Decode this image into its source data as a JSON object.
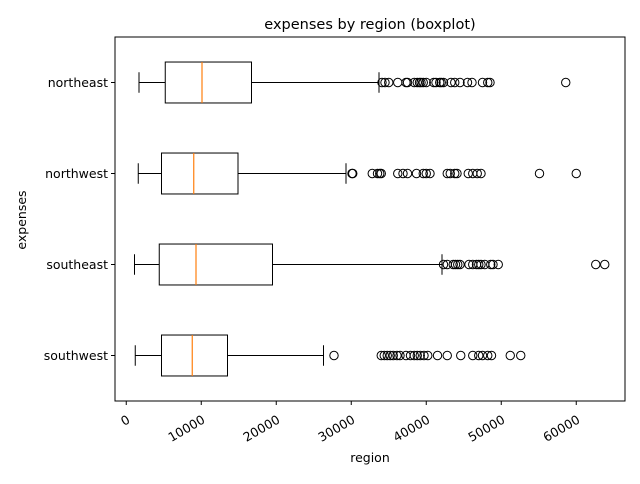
{
  "chart_data": {
    "type": "boxplot",
    "orientation": "horizontal",
    "title": "expenses by region (boxplot)",
    "xlabel": "region",
    "ylabel": "expenses",
    "xlim": [
      -1500,
      66500
    ],
    "xticks": [
      0,
      10000,
      20000,
      30000,
      40000,
      50000,
      60000
    ],
    "xtick_labels": [
      "0",
      "10000",
      "20000",
      "30000",
      "40000",
      "50000",
      "60000"
    ],
    "xtick_rotation": 30,
    "grid": false,
    "colors": {
      "box": "#000000",
      "median": "#ff7f0e",
      "flier": "#000000",
      "background": "#ffffff"
    },
    "categories": [
      "northeast",
      "northwest",
      "southeast",
      "southwest"
    ],
    "boxes": [
      {
        "name": "northeast",
        "whisker_low": 1700,
        "q1": 5200,
        "median": 10100,
        "q3": 16700,
        "whisker_high": 33700,
        "fliers": [
          34100,
          34500,
          35000,
          36200,
          37300,
          37500,
          38400,
          38800,
          39100,
          39300,
          39600,
          40000,
          41000,
          41300,
          41800,
          42000,
          42300,
          43300,
          43800,
          44500,
          45500,
          46100,
          47500,
          48200,
          48500,
          58600
        ]
      },
      {
        "name": "northwest",
        "whisker_low": 1600,
        "q1": 4700,
        "median": 9000,
        "q3": 14900,
        "whisker_high": 29300,
        "fliers": [
          30100,
          30200,
          32800,
          33500,
          33800,
          34000,
          36200,
          36900,
          37500,
          38700,
          39600,
          40000,
          40500,
          42800,
          43200,
          43800,
          44100,
          45600,
          46200,
          46800,
          47300,
          55100,
          60000
        ]
      },
      {
        "name": "southeast",
        "whisker_low": 1100,
        "q1": 4400,
        "median": 9300,
        "q3": 19500,
        "whisker_high": 42100,
        "fliers": [
          42300,
          42800,
          43600,
          43900,
          44200,
          44500,
          45700,
          46200,
          46700,
          47000,
          47300,
          47800,
          48600,
          48900,
          49600,
          62600,
          63800
        ]
      },
      {
        "name": "southwest",
        "whisker_low": 1200,
        "q1": 4700,
        "median": 8800,
        "q3": 13500,
        "whisker_high": 26300,
        "fliers": [
          27700,
          34000,
          34400,
          34800,
          35200,
          35600,
          36100,
          36500,
          37300,
          37900,
          38400,
          38800,
          39200,
          39700,
          40200,
          41500,
          42800,
          44600,
          46200,
          47000,
          47500,
          48200,
          48700,
          51200,
          52600
        ]
      }
    ]
  }
}
